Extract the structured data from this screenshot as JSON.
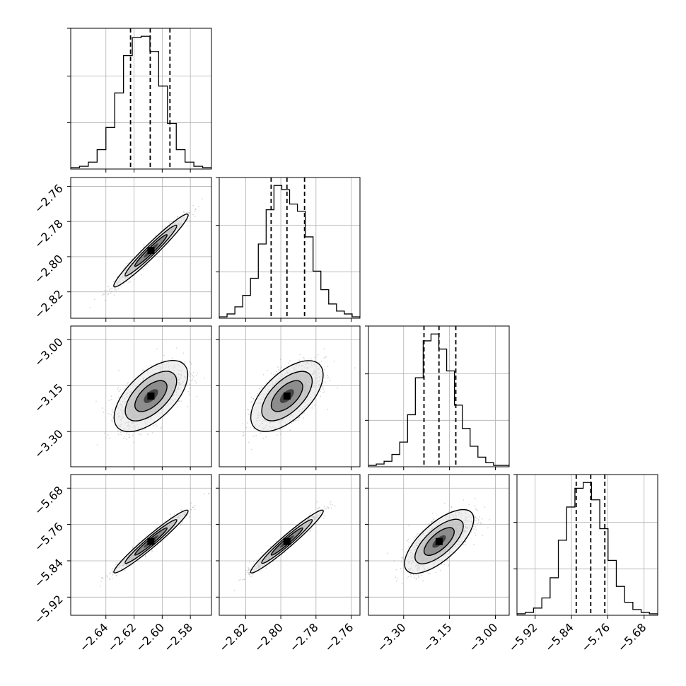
{
  "chart_data": {
    "type": "corner",
    "parameters": [
      {
        "range": [
          -2.665,
          -2.565
        ],
        "ticks": [
          "−2.64",
          "−2.62",
          "−2.60",
          "−2.58"
        ],
        "tick_values": [
          -2.64,
          -2.62,
          -2.6,
          -2.58
        ],
        "quantiles": [
          -2.6225,
          -2.6085,
          -2.5945
        ],
        "mean": -2.608,
        "sd": 0.0115,
        "hist": [
          1,
          2,
          5,
          14,
          30,
          55,
          82,
          95,
          96,
          85,
          60,
          33,
          14,
          5,
          2,
          1
        ]
      },
      {
        "range": [
          -2.835,
          -2.755
        ],
        "ticks": [
          "−2.82",
          "−2.80",
          "−2.78",
          "−2.76"
        ],
        "tick_values": [
          -2.82,
          -2.8,
          -2.78,
          -2.76
        ],
        "quantiles": [
          -2.8055,
          -2.7965,
          -2.7865
        ],
        "mean": -2.7965,
        "sd": 0.009,
        "hist": [
          1,
          3,
          8,
          16,
          28,
          52,
          76,
          93,
          90,
          80,
          75,
          57,
          33,
          20,
          10,
          5,
          3,
          1
        ]
      },
      {
        "range": [
          -3.415,
          -2.955
        ],
        "ticks": [
          "−3.30",
          "−3.15",
          "−3.00"
        ],
        "tick_values": [
          -3.3,
          -3.15,
          -3.0
        ],
        "quantiles": [
          -3.2335,
          -3.1845,
          -3.1295
        ],
        "mean": -3.184,
        "sd": 0.05,
        "hist": [
          1,
          2,
          4,
          9,
          18,
          38,
          65,
          92,
          97,
          86,
          70,
          45,
          28,
          15,
          7,
          3,
          1,
          1
        ]
      },
      {
        "range": [
          -5.96,
          -5.65
        ],
        "ticks": [
          "−5.92",
          "−5.84",
          "−5.76",
          "−5.68"
        ],
        "tick_values": [
          -5.92,
          -5.84,
          -5.76,
          -5.68
        ],
        "quantiles": [
          -5.8295,
          -5.7975,
          -5.7665
        ],
        "mean": -5.7975,
        "sd": 0.03,
        "hist": [
          1,
          2,
          5,
          12,
          26,
          52,
          75,
          88,
          92,
          80,
          60,
          38,
          20,
          9,
          4,
          2,
          1
        ]
      }
    ],
    "correlations": [
      [
        1,
        0.97,
        0.6,
        0.97
      ],
      [
        0.97,
        1,
        0.6,
        0.97
      ],
      [
        0.6,
        0.6,
        1,
        0.7
      ],
      [
        0.97,
        0.97,
        0.7,
        1
      ]
    ],
    "histogram_style": "step",
    "quantile_lines": "dashed",
    "contour_levels": 3,
    "grid": true,
    "colors": {
      "line": "#000000",
      "scatter": "#8c8c8c",
      "grid": "#b0b0b0"
    }
  }
}
